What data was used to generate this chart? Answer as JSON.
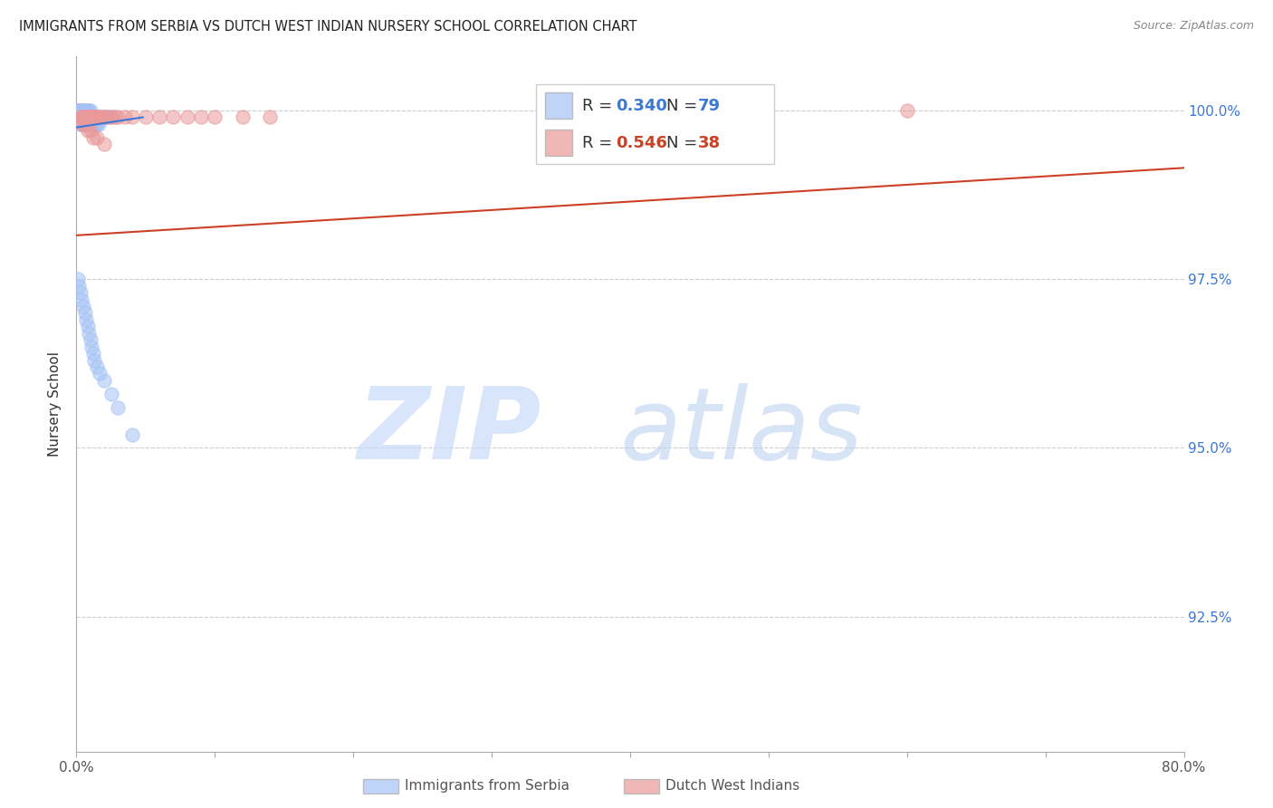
{
  "title": "IMMIGRANTS FROM SERBIA VS DUTCH WEST INDIAN NURSERY SCHOOL CORRELATION CHART",
  "source": "Source: ZipAtlas.com",
  "ylabel": "Nursery School",
  "ylabel_ticks": [
    "92.5%",
    "95.0%",
    "97.5%",
    "100.0%"
  ],
  "ylabel_vals": [
    0.925,
    0.95,
    0.975,
    1.0
  ],
  "xmin": 0.0,
  "xmax": 0.8,
  "ymin": 0.905,
  "ymax": 1.008,
  "r_blue": 0.34,
  "n_blue": 79,
  "r_pink": 0.546,
  "n_pink": 38,
  "blue_color": "#a4c2f4",
  "pink_color": "#ea9999",
  "blue_line_color": "#3c78d8",
  "pink_line_color": "#cc4125",
  "legend_label_blue": "Immigrants from Serbia",
  "legend_label_pink": "Dutch West Indians",
  "blue_x": [
    0.001,
    0.001,
    0.002,
    0.002,
    0.002,
    0.002,
    0.003,
    0.003,
    0.003,
    0.003,
    0.003,
    0.003,
    0.004,
    0.004,
    0.004,
    0.004,
    0.004,
    0.005,
    0.005,
    0.005,
    0.005,
    0.005,
    0.006,
    0.006,
    0.006,
    0.006,
    0.007,
    0.007,
    0.007,
    0.007,
    0.008,
    0.008,
    0.008,
    0.008,
    0.009,
    0.009,
    0.009,
    0.01,
    0.01,
    0.01,
    0.01,
    0.011,
    0.011,
    0.012,
    0.012,
    0.013,
    0.013,
    0.014,
    0.014,
    0.015,
    0.015,
    0.016,
    0.016,
    0.017,
    0.018,
    0.02,
    0.021,
    0.022,
    0.024,
    0.025,
    0.001,
    0.002,
    0.003,
    0.004,
    0.005,
    0.006,
    0.007,
    0.008,
    0.009,
    0.01,
    0.011,
    0.012,
    0.013,
    0.015,
    0.017,
    0.02,
    0.025,
    0.03,
    0.04
  ],
  "blue_y": [
    1.0,
    1.0,
    1.0,
    1.0,
    1.0,
    0.999,
    1.0,
    1.0,
    1.0,
    0.999,
    0.999,
    0.998,
    1.0,
    1.0,
    0.999,
    0.999,
    0.998,
    1.0,
    1.0,
    0.999,
    0.999,
    0.998,
    1.0,
    0.999,
    0.999,
    0.998,
    1.0,
    0.999,
    0.999,
    0.998,
    1.0,
    0.999,
    0.999,
    0.998,
    1.0,
    0.999,
    0.998,
    1.0,
    0.999,
    0.999,
    0.998,
    0.999,
    0.998,
    0.999,
    0.998,
    0.999,
    0.998,
    0.999,
    0.998,
    0.999,
    0.998,
    0.999,
    0.998,
    0.999,
    0.999,
    0.999,
    0.999,
    0.999,
    0.999,
    0.999,
    0.975,
    0.974,
    0.973,
    0.972,
    0.971,
    0.97,
    0.969,
    0.968,
    0.967,
    0.966,
    0.965,
    0.964,
    0.963,
    0.962,
    0.961,
    0.96,
    0.958,
    0.956,
    0.952
  ],
  "pink_x": [
    0.003,
    0.004,
    0.005,
    0.006,
    0.007,
    0.008,
    0.009,
    0.01,
    0.011,
    0.012,
    0.013,
    0.014,
    0.015,
    0.016,
    0.018,
    0.02,
    0.022,
    0.025,
    0.028,
    0.03,
    0.035,
    0.04,
    0.05,
    0.06,
    0.07,
    0.08,
    0.09,
    0.1,
    0.12,
    0.14,
    0.004,
    0.006,
    0.008,
    0.01,
    0.012,
    0.015,
    0.02,
    0.6
  ],
  "pink_y": [
    0.999,
    0.999,
    0.999,
    0.999,
    0.999,
    0.999,
    0.999,
    0.999,
    0.999,
    0.999,
    0.999,
    0.999,
    0.999,
    0.999,
    0.999,
    0.999,
    0.999,
    0.999,
    0.999,
    0.999,
    0.999,
    0.999,
    0.999,
    0.999,
    0.999,
    0.999,
    0.999,
    0.999,
    0.999,
    0.999,
    0.998,
    0.998,
    0.997,
    0.997,
    0.996,
    0.996,
    0.995,
    1.0
  ],
  "blue_trendline_x": [
    0.0,
    0.048
  ],
  "blue_trendline_y": [
    0.9975,
    0.999
  ],
  "pink_trendline_x": [
    0.0,
    0.8
  ],
  "pink_trendline_y": [
    0.9815,
    0.9915
  ]
}
